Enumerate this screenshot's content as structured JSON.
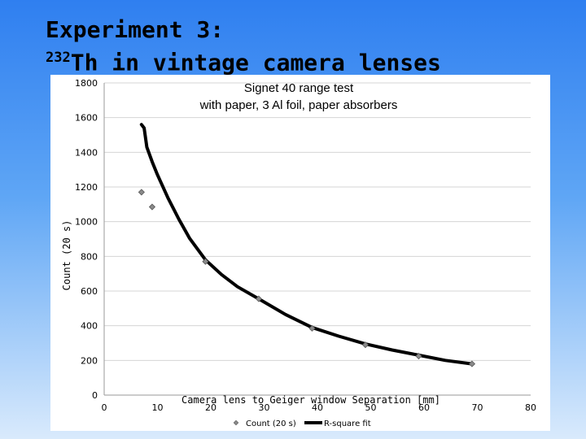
{
  "slide": {
    "title_line1": "Experiment 3:",
    "title_sup": "232",
    "title_line2": "Th in vintage camera lenses"
  },
  "chart_data": {
    "type": "scatter",
    "title": "Signet 40 range test\nwith paper, 3 Al foil, paper absorbers",
    "title_line1": "Signet 40 range test",
    "title_line2": "with paper, 3 Al foil, paper absorbers",
    "xlabel": "Camera lens to Geiger window Separation [mm]",
    "ylabel": "Count (20 s)",
    "xlim": [
      0,
      80
    ],
    "ylim": [
      0,
      1800
    ],
    "xticks": [
      0,
      10,
      20,
      30,
      40,
      50,
      60,
      70,
      80
    ],
    "yticks": [
      0,
      200,
      400,
      600,
      800,
      1000,
      1200,
      1400,
      1600,
      1800
    ],
    "grid": "horizontal",
    "legend_position": "bottom",
    "series": [
      {
        "name": "Count (20 s)",
        "kind": "markers",
        "color": "#8a8a8a",
        "x": [
          7,
          9,
          19,
          29,
          39,
          49,
          59,
          69
        ],
        "y": [
          1170,
          1085,
          770,
          555,
          385,
          290,
          225,
          180
        ]
      },
      {
        "name": "R-square fit",
        "kind": "line",
        "color": "#000000",
        "x": [
          7,
          7.5,
          8,
          9,
          10,
          12,
          14,
          16,
          19,
          22,
          25,
          29,
          34,
          39,
          44,
          49,
          54,
          59,
          64,
          69
        ],
        "y": [
          1560,
          1540,
          1430,
          1345,
          1270,
          1135,
          1015,
          905,
          780,
          695,
          625,
          555,
          465,
          390,
          340,
          295,
          260,
          230,
          200,
          180
        ]
      }
    ]
  }
}
